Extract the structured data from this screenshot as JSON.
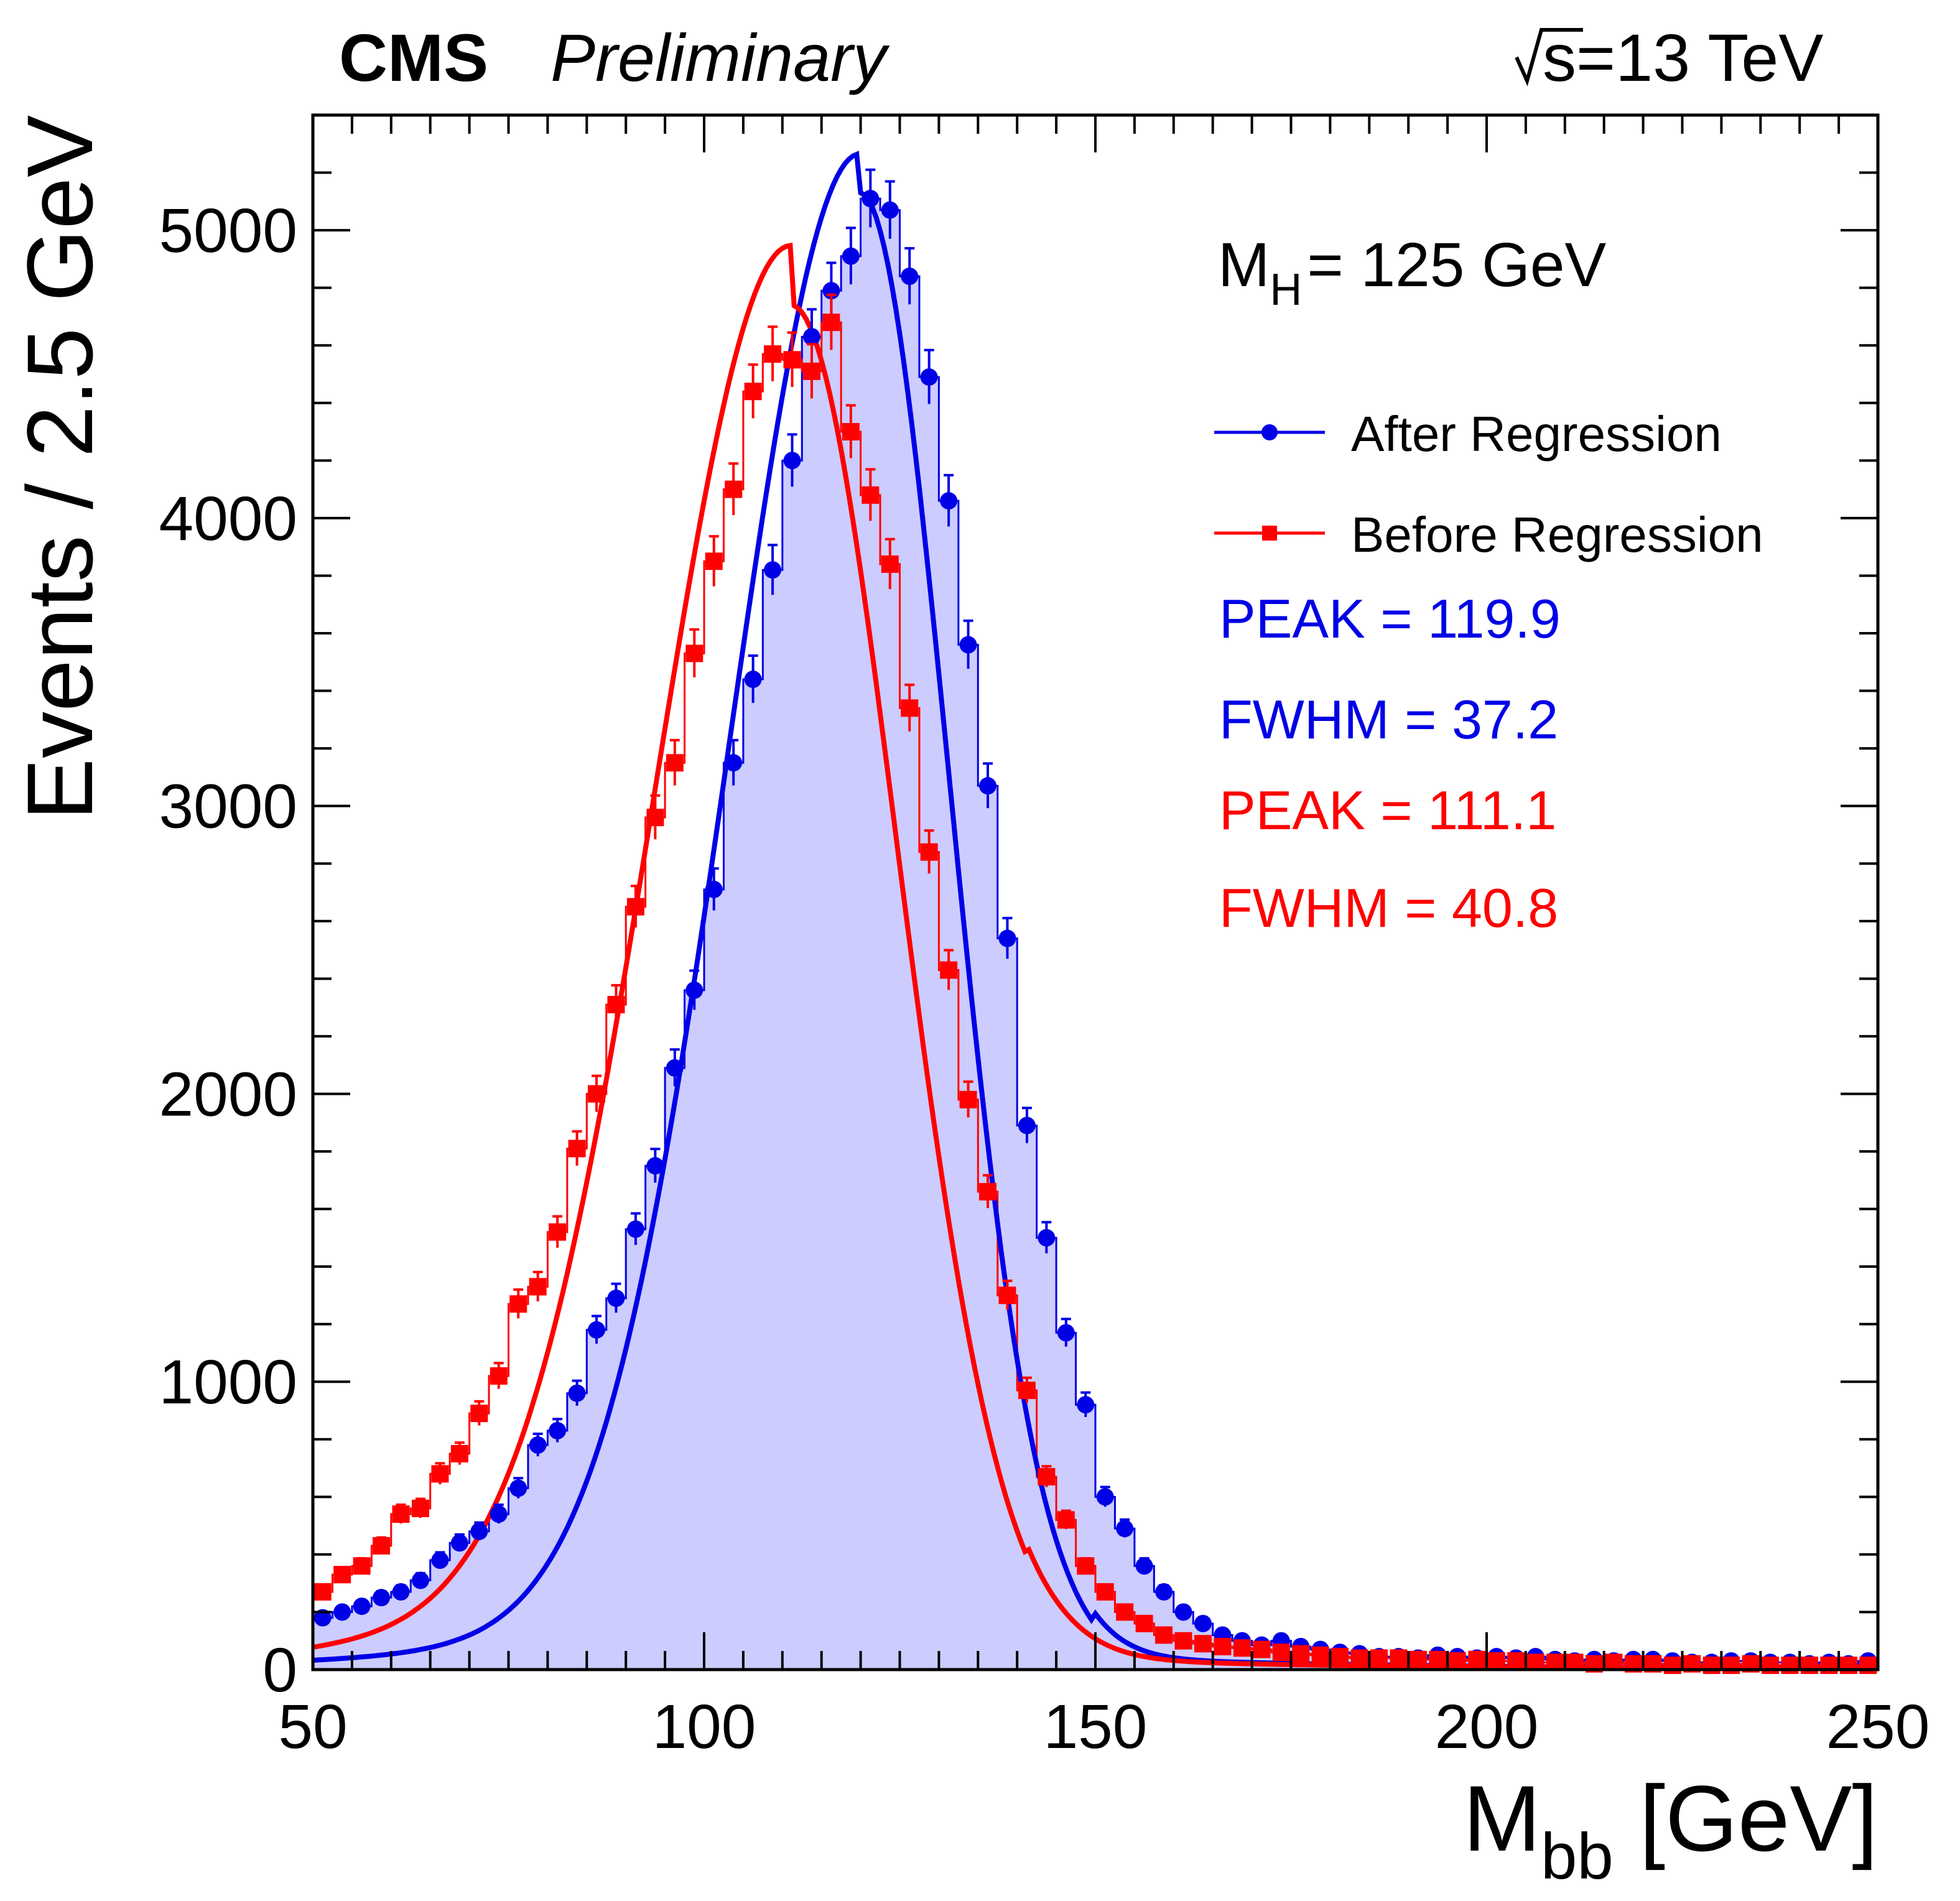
{
  "header": {
    "experiment": "CMS",
    "status": "Preliminary",
    "energy_prefix": "s",
    "energy_value": "=13 TeV"
  },
  "annotations": {
    "mass_main": "M",
    "mass_sub": "H",
    "mass_value": "= 125 GeV",
    "after_peak": "PEAK = 119.9",
    "after_fwhm": "FWHM = 37.2",
    "before_peak": "PEAK = 111.1",
    "before_fwhm": "FWHM = 40.8"
  },
  "axes": {
    "xlabel_main": "M",
    "xlabel_sub": "bb",
    "xlabel_unit": " [GeV]",
    "ylabel": "Events / 2.5 GeV"
  },
  "colors": {
    "after": "#0000e6",
    "before": "#ff0000",
    "fill": "#ccccff",
    "frame": "#000000"
  },
  "chart_data": {
    "type": "line",
    "xlim": [
      50,
      250
    ],
    "ylim": [
      0,
      5400
    ],
    "x_ticks": [
      50,
      100,
      150,
      200,
      250
    ],
    "y_ticks": [
      0,
      1000,
      2000,
      3000,
      4000,
      5000
    ],
    "bin_width": 2.5,
    "grid": false,
    "legend_position": "top-right",
    "series": [
      {
        "name": "After Regression",
        "marker": "circle",
        "color": "#0000e6",
        "fill": "#ccccff",
        "x": [
          51.25,
          53.75,
          56.25,
          58.75,
          61.25,
          63.75,
          66.25,
          68.75,
          71.25,
          73.75,
          76.25,
          78.75,
          81.25,
          83.75,
          86.25,
          88.75,
          91.25,
          93.75,
          96.25,
          98.75,
          101.25,
          103.75,
          106.25,
          108.75,
          111.25,
          113.75,
          116.25,
          118.75,
          121.25,
          123.75,
          126.25,
          128.75,
          131.25,
          133.75,
          136.25,
          138.75,
          141.25,
          143.75,
          146.25,
          148.75,
          151.25,
          153.75,
          156.25,
          158.75,
          161.25,
          163.75,
          166.25,
          168.75,
          171.25,
          173.75,
          176.25,
          178.75,
          181.25,
          183.75,
          186.25,
          188.75,
          191.25,
          193.75,
          196.25,
          198.75,
          201.25,
          203.75,
          206.25,
          208.75,
          211.25,
          213.75,
          216.25,
          218.75,
          221.25,
          223.75,
          226.25,
          228.75,
          231.25,
          233.75,
          236.25,
          238.75,
          241.25,
          243.75,
          246.25,
          248.75
        ],
        "y": [
          180,
          200,
          220,
          250,
          270,
          310,
          380,
          440,
          480,
          540,
          630,
          780,
          830,
          960,
          1180,
          1290,
          1530,
          1750,
          2090,
          2360,
          2710,
          3150,
          3440,
          3820,
          4200,
          4630,
          4790,
          4910,
          5110,
          5070,
          4840,
          4490,
          4060,
          3560,
          3070,
          2540,
          1890,
          1500,
          1170,
          920,
          600,
          490,
          360,
          270,
          200,
          160,
          120,
          100,
          85,
          100,
          80,
          70,
          60,
          55,
          45,
          45,
          40,
          50,
          45,
          40,
          45,
          40,
          45,
          35,
          30,
          35,
          30,
          35,
          35,
          30,
          25,
          25,
          30,
          30,
          25,
          25,
          20,
          25,
          20,
          30
        ]
      },
      {
        "name": "Before Regression",
        "marker": "square",
        "color": "#ff0000",
        "x": [
          51.25,
          53.75,
          56.25,
          58.75,
          61.25,
          63.75,
          66.25,
          68.75,
          71.25,
          73.75,
          76.25,
          78.75,
          81.25,
          83.75,
          86.25,
          88.75,
          91.25,
          93.75,
          96.25,
          98.75,
          101.25,
          103.75,
          106.25,
          108.75,
          111.25,
          113.75,
          116.25,
          118.75,
          121.25,
          123.75,
          126.25,
          128.75,
          131.25,
          133.75,
          136.25,
          138.75,
          141.25,
          143.75,
          146.25,
          148.75,
          151.25,
          153.75,
          156.25,
          158.75,
          161.25,
          163.75,
          166.25,
          168.75,
          171.25,
          173.75,
          176.25,
          178.75,
          181.25,
          183.75,
          186.25,
          188.75,
          191.25,
          193.75,
          196.25,
          198.75,
          201.25,
          203.75,
          206.25,
          208.75,
          211.25,
          213.75,
          216.25,
          218.75,
          221.25,
          223.75,
          226.25,
          228.75,
          231.25,
          233.75,
          236.25,
          238.75,
          241.25,
          243.75,
          246.25,
          248.75
        ],
        "y": [
          270,
          330,
          360,
          430,
          540,
          560,
          680,
          750,
          890,
          1020,
          1270,
          1330,
          1520,
          1810,
          2000,
          2310,
          2650,
          2960,
          3150,
          3530,
          3850,
          4100,
          4440,
          4570,
          4550,
          4510,
          4680,
          4300,
          4080,
          3840,
          3340,
          2840,
          2430,
          1980,
          1660,
          1300,
          970,
          670,
          520,
          360,
          270,
          200,
          160,
          120,
          100,
          90,
          80,
          75,
          70,
          60,
          55,
          50,
          45,
          40,
          40,
          40,
          35,
          35,
          30,
          35,
          30,
          30,
          25,
          25,
          25,
          20,
          25,
          20,
          20,
          15,
          20,
          15,
          15,
          20,
          15,
          15,
          15,
          15,
          15,
          15
        ]
      }
    ],
    "fits": [
      {
        "name": "After Regression fit",
        "peak": 119.9,
        "fwhm": 37.2,
        "amplitude": 5130
      },
      {
        "name": "Before Regression fit",
        "peak": 111.1,
        "fwhm": 40.8,
        "amplitude": 4740
      }
    ]
  }
}
